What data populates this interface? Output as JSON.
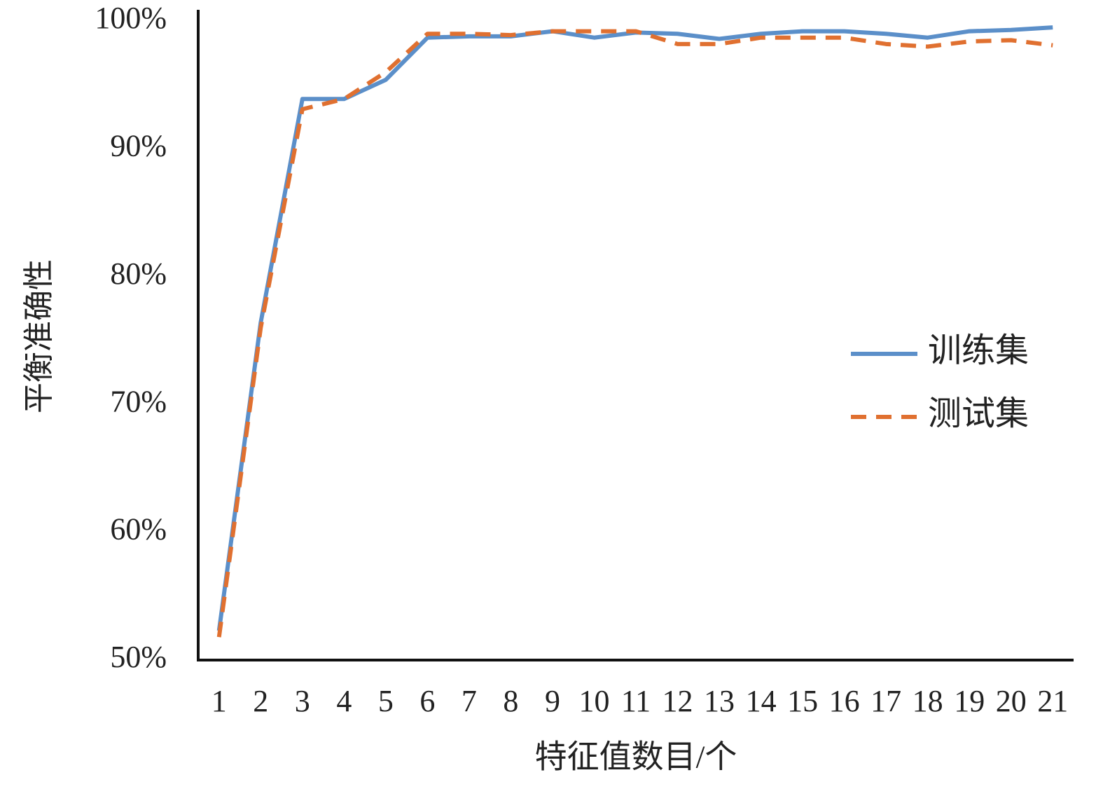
{
  "chart_data": {
    "type": "line",
    "x_label": "特征值数目/个",
    "y_label": "平衡准确性",
    "categories": [
      "1",
      "2",
      "3",
      "4",
      "5",
      "6",
      "7",
      "8",
      "9",
      "10",
      "11",
      "12",
      "13",
      "14",
      "15",
      "16",
      "17",
      "18",
      "19",
      "20",
      "21"
    ],
    "series": [
      {
        "name": "训练集",
        "color": "#5b8fc9",
        "dash": "solid",
        "values": [
          52.3,
          76.4,
          93.9,
          93.9,
          95.4,
          98.7,
          98.8,
          98.8,
          99.2,
          98.7,
          99.1,
          99.0,
          98.6,
          99.0,
          99.2,
          99.2,
          99.0,
          98.7,
          99.2,
          99.3,
          99.5
        ]
      },
      {
        "name": "测试集",
        "color": "#e07030",
        "dash": "dashed",
        "values": [
          51.8,
          76.0,
          93.1,
          93.9,
          96.0,
          99.0,
          99.0,
          98.9,
          99.2,
          99.2,
          99.2,
          98.2,
          98.2,
          98.7,
          98.7,
          98.7,
          98.2,
          98.0,
          98.4,
          98.5,
          98.1
        ]
      }
    ],
    "ylim": [
      50,
      100
    ],
    "yticks": [
      {
        "value": 50,
        "label": "50%"
      },
      {
        "value": 60,
        "label": "60%"
      },
      {
        "value": 70,
        "label": "70%"
      },
      {
        "value": 80,
        "label": "80%"
      },
      {
        "value": 90,
        "label": "90%"
      },
      {
        "value": 100,
        "label": "100%"
      }
    ],
    "grid": false,
    "legend": "right"
  }
}
